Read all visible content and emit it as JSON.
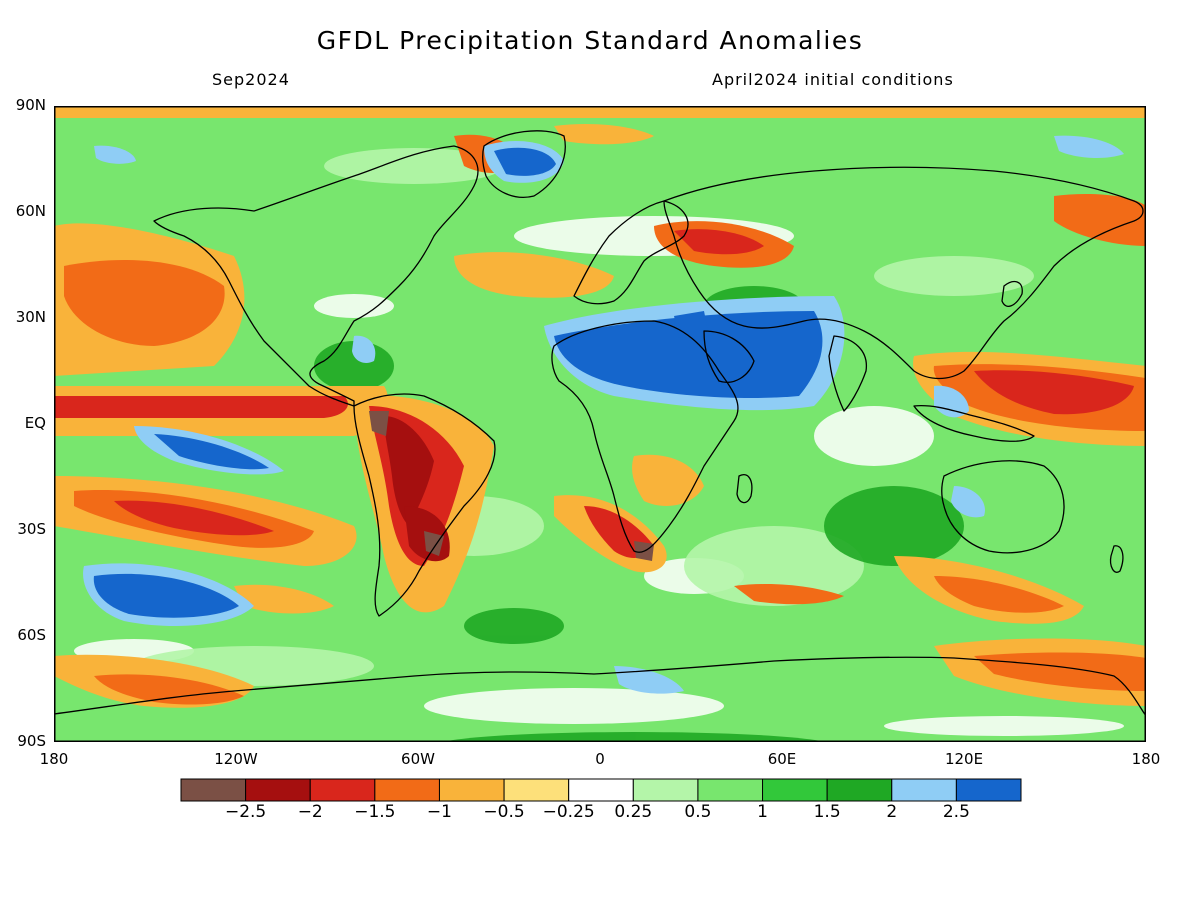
{
  "title": "GFDL Precipitation Standard Anomalies",
  "valid_month": "Sep2024",
  "initial_conditions": "April2024 initial conditions",
  "lat_labels": [
    "90N",
    "60N",
    "30N",
    "EQ",
    "30S",
    "60S",
    "90S"
  ],
  "lon_labels": [
    "180",
    "120W",
    "60W",
    "0",
    "60E",
    "120E",
    "180"
  ],
  "colorbar": {
    "labels": [
      "−2.5",
      "−2",
      "−1.5",
      "−1",
      "−0.5",
      "−0.25",
      "0.25",
      "0.5",
      "1",
      "1.5",
      "2",
      "2.5"
    ],
    "colors": [
      "#7b5045",
      "#a50f0f",
      "#d9261c",
      "#f26b17",
      "#f9b33a",
      "#fde07a",
      "#ffffff",
      "#b4f5a9",
      "#78e66e",
      "#32c83a",
      "#1fa824",
      "#8fcdf5",
      "#1566cc"
    ]
  }
}
